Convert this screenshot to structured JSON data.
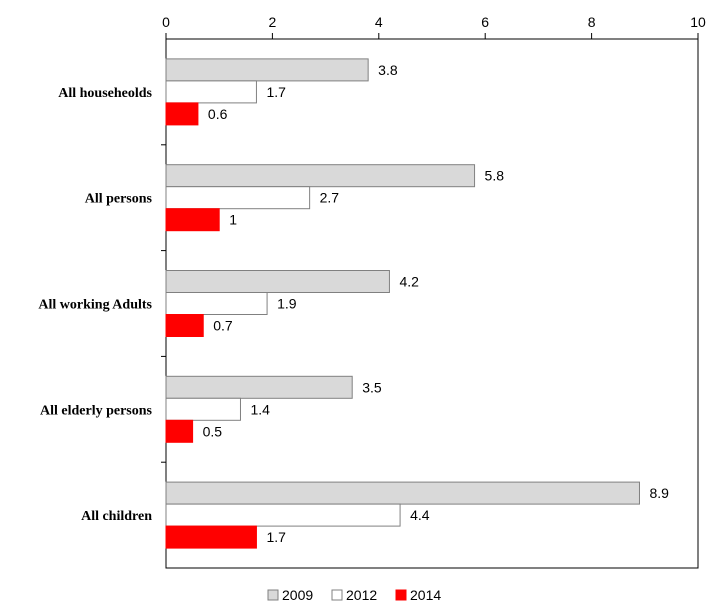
{
  "chart_data": {
    "type": "bar",
    "orientation": "horizontal",
    "categories": [
      "All househeolds",
      "All persons",
      "All working Adults",
      "All elderly persons",
      "All children"
    ],
    "series": [
      {
        "name": "2009",
        "values": [
          3.8,
          5.8,
          4.2,
          3.5,
          8.9
        ],
        "fill": "#d9d9d9",
        "stroke": "#808080"
      },
      {
        "name": "2012",
        "values": [
          1.7,
          2.7,
          1.9,
          1.4,
          4.4
        ],
        "fill": "#ffffff",
        "stroke": "#808080"
      },
      {
        "name": "2014",
        "values": [
          0.6,
          1,
          0.7,
          0.5,
          1.7
        ],
        "fill": "#ff0000",
        "stroke": "#ff0000"
      }
    ],
    "xticks": [
      0,
      2,
      4,
      6,
      8,
      10
    ],
    "xlim": [
      0,
      10
    ],
    "x_axis_position": "top",
    "title": "",
    "xlabel": "",
    "ylabel": "",
    "grid": false,
    "legend_position": "bottom"
  }
}
